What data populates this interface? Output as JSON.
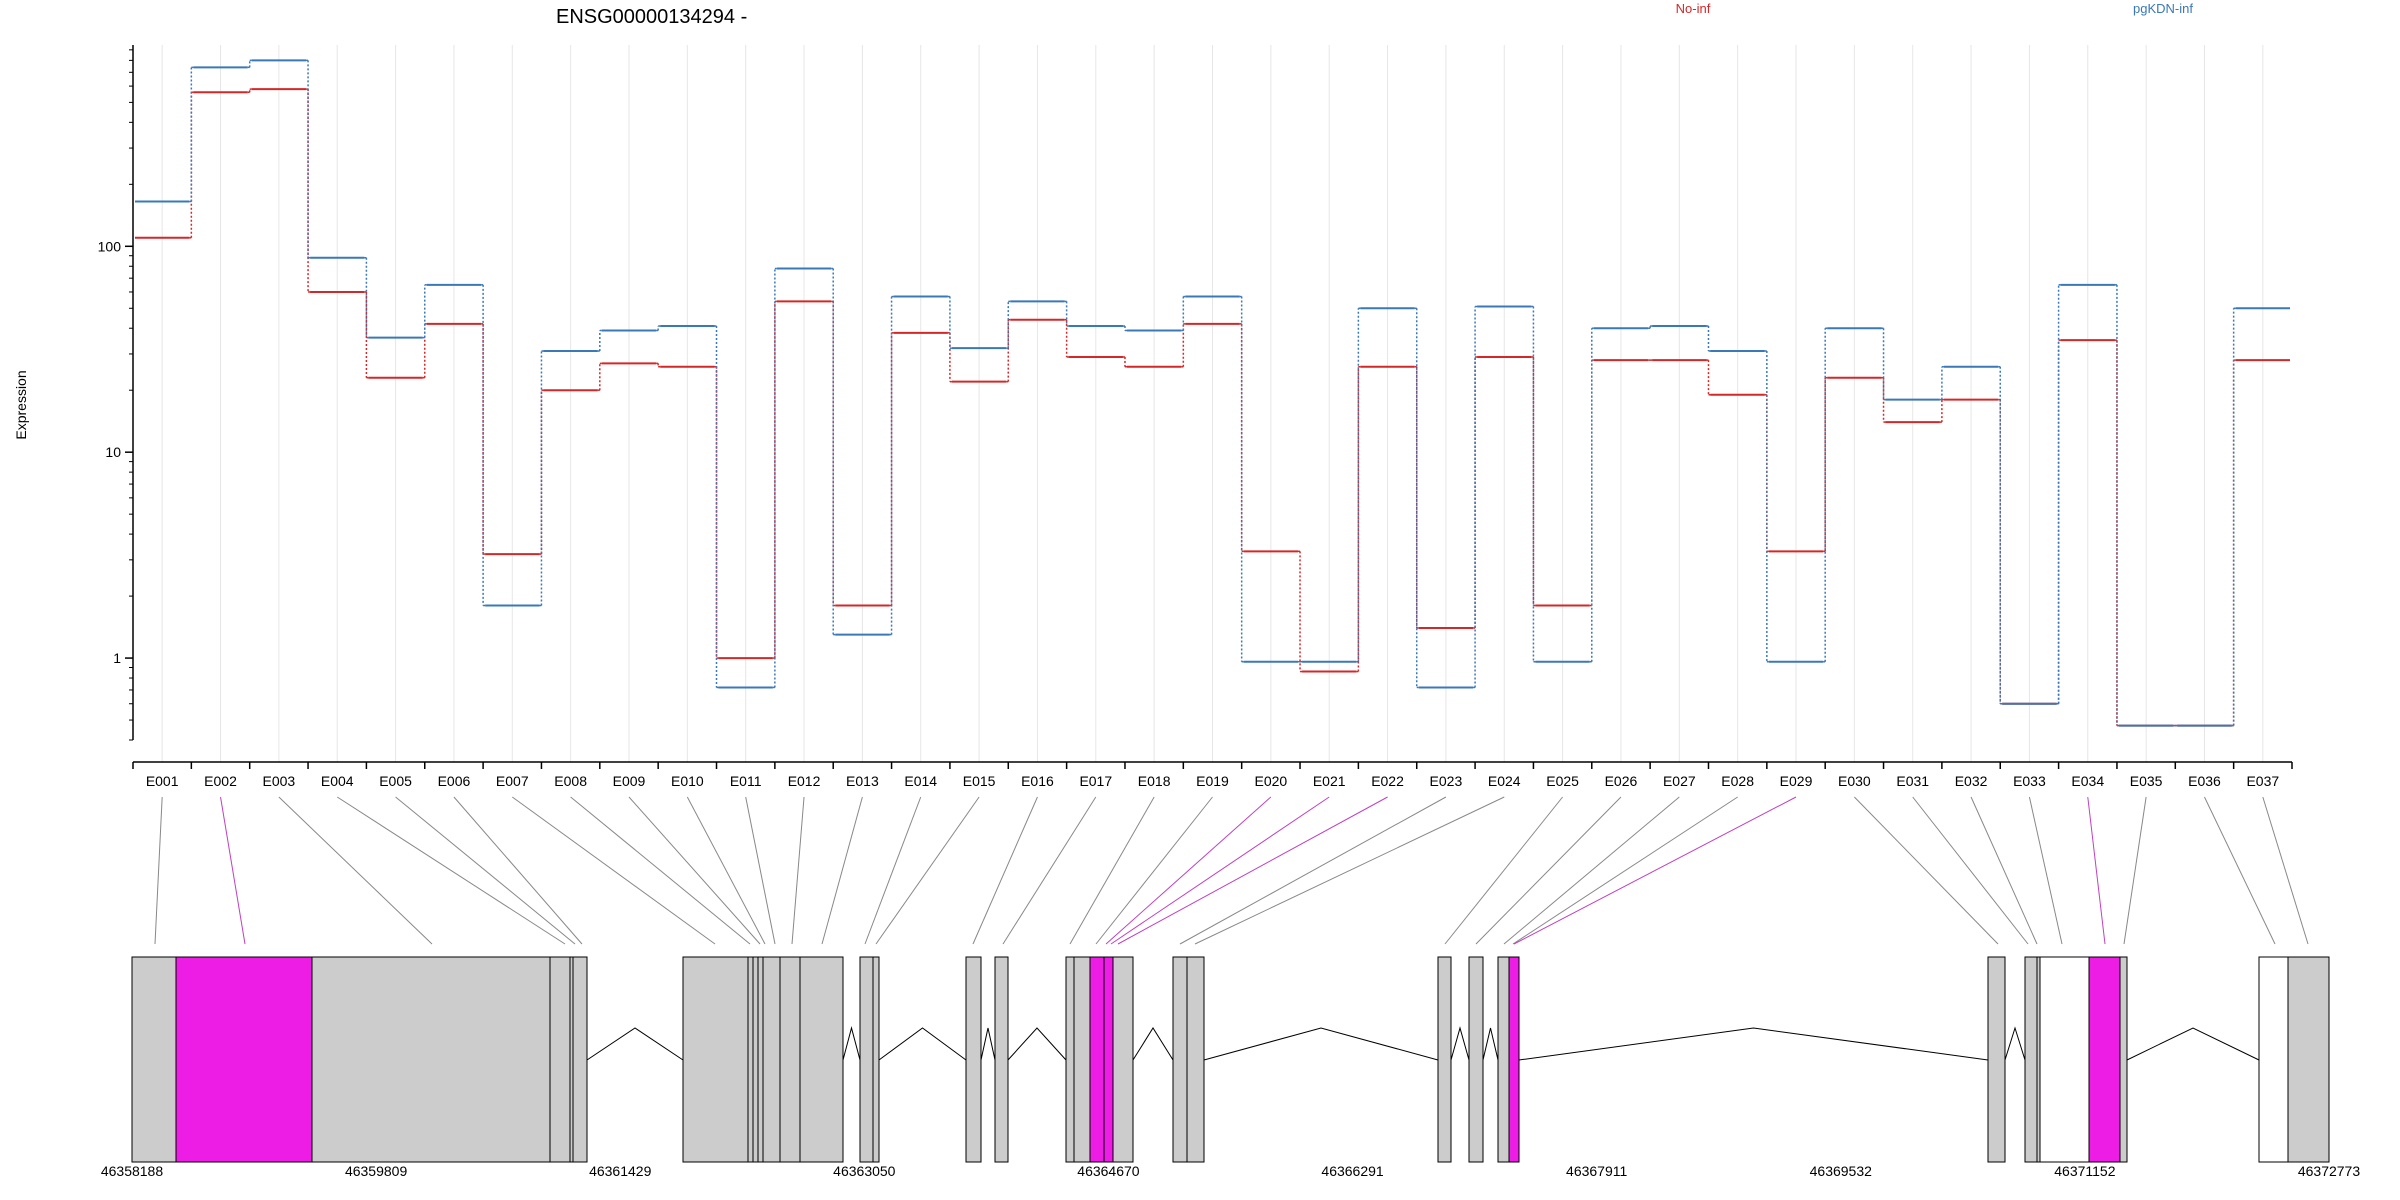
{
  "chart_data": {
    "type": "line",
    "title": "ENSG00000134294 -",
    "ylabel": "Expression",
    "y_scale": "log",
    "ylim": [
      0.4,
      950
    ],
    "y_ticks": [
      {
        "value": 1,
        "label": "1"
      },
      {
        "value": 10,
        "label": "10"
      },
      {
        "value": 100,
        "label": "100"
      }
    ],
    "categories": [
      "E001",
      "E002",
      "E003",
      "E004",
      "E005",
      "E006",
      "E007",
      "E008",
      "E009",
      "E010",
      "E011",
      "E012",
      "E013",
      "E014",
      "E015",
      "E016",
      "E017",
      "E018",
      "E019",
      "E020",
      "E021",
      "E022",
      "E023",
      "E024",
      "E025",
      "E026",
      "E027",
      "E028",
      "E029",
      "E030",
      "E031",
      "E032",
      "E033",
      "E034",
      "E035",
      "E036",
      "E037"
    ],
    "legend_placement": "top",
    "series": [
      {
        "name": "No-inf",
        "color": "#d62728",
        "values": [
          110,
          560,
          580,
          60,
          23,
          42,
          3.2,
          20,
          27,
          26,
          1.0,
          54,
          1.8,
          38,
          22,
          44,
          29,
          26,
          42,
          3.3,
          0.86,
          26,
          1.4,
          29,
          1.8,
          28,
          28,
          19,
          3.3,
          23,
          14,
          18,
          0.6,
          35,
          0.47,
          0.47,
          28
        ]
      },
      {
        "name": "pgKDN-inf",
        "color": "#3a78b8",
        "values": [
          165,
          740,
          800,
          88,
          36,
          65,
          1.8,
          31,
          39,
          41,
          0.72,
          78,
          1.3,
          57,
          32,
          54,
          41,
          39,
          57,
          0.96,
          0.96,
          50,
          0.72,
          51,
          0.96,
          40,
          41,
          31,
          0.96,
          40,
          18,
          26,
          0.6,
          65,
          0.47,
          0.47,
          50
        ]
      }
    ],
    "genomic_axis": {
      "labels": [
        "46358188",
        "46359809",
        "46361429",
        "46363050",
        "46364670",
        "46366291",
        "46367911",
        "46369532",
        "46371152",
        "46372773"
      ]
    },
    "gene_model": {
      "highlight_color": "#ee1de6",
      "exon_color": "#cccccc",
      "highlighted_exons": [
        "E002",
        "E020",
        "E021",
        "E022",
        "E029",
        "E034"
      ]
    }
  }
}
